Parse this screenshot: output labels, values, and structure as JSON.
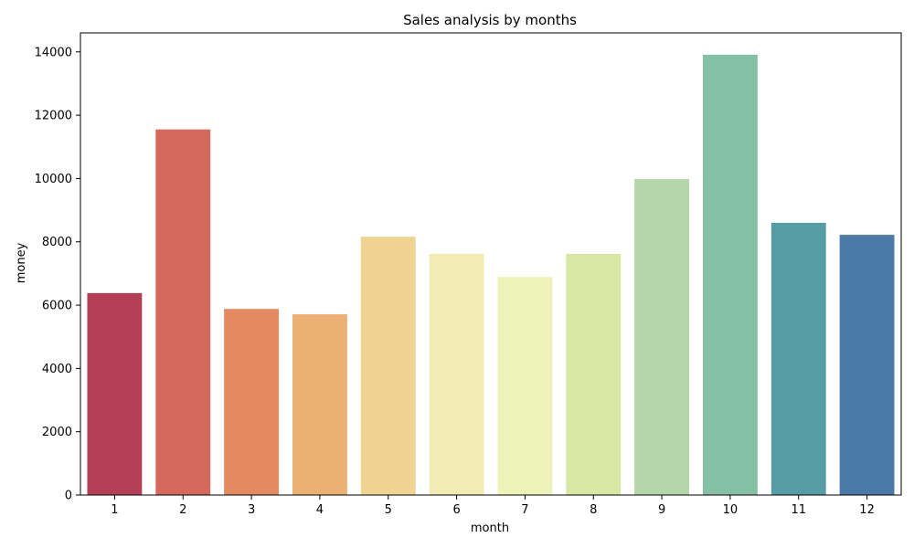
{
  "chart_data": {
    "type": "bar",
    "title": "Sales analysis by months",
    "xlabel": "month",
    "ylabel": "money",
    "categories": [
      "1",
      "2",
      "3",
      "4",
      "5",
      "6",
      "7",
      "8",
      "9",
      "10",
      "11",
      "12"
    ],
    "values": [
      6380,
      11550,
      5880,
      5710,
      8160,
      7620,
      6890,
      7620,
      9980,
      13910,
      8600,
      8220
    ],
    "colors": [
      "#b43f56",
      "#d4695c",
      "#e38a62",
      "#ebb174",
      "#f0d292",
      "#f2ebb3",
      "#edf3b9",
      "#d8e7a3",
      "#b4d6a8",
      "#86c0a4",
      "#589ca6",
      "#4b79a8"
    ],
    "ylim": [
      0,
      14600
    ],
    "yticks": [
      0,
      2000,
      4000,
      6000,
      8000,
      10000,
      12000,
      14000
    ],
    "grid": false,
    "legend": "none"
  }
}
